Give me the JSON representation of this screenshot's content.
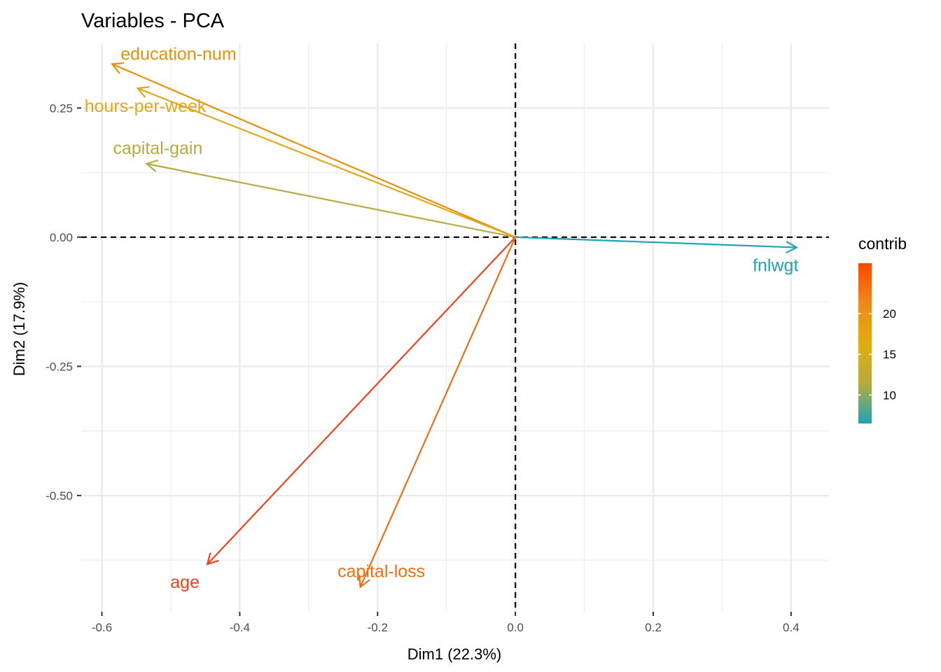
{
  "chart_data": {
    "type": "scatter",
    "subtype": "pca-variable-correlation-arrows",
    "title": "Variables - PCA",
    "xlabel": "Dim1 (22.3%)",
    "ylabel": "Dim2 (17.9%)",
    "xlim": [
      -0.63,
      0.455
    ],
    "ylim": [
      -0.725,
      0.375
    ],
    "x_ticks": [
      -0.6,
      -0.4,
      -0.2,
      0.0,
      0.2,
      0.4
    ],
    "x_tick_labels": [
      "-0.6",
      "-0.4",
      "-0.2",
      "0.0",
      "0.2",
      "0.4"
    ],
    "y_ticks": [
      0.25,
      0.0,
      -0.25,
      -0.5
    ],
    "y_tick_labels": [
      "0.25",
      "0.00",
      "-0.25",
      "-0.50"
    ],
    "grid": true,
    "reference_lines": {
      "x": 0,
      "y": 0,
      "style": "dashed"
    },
    "variables": [
      {
        "name": "education-num",
        "x": -0.585,
        "y": 0.335,
        "contrib": 19.5,
        "color": "#E8900A"
      },
      {
        "name": "hours-per-week",
        "x": -0.548,
        "y": 0.288,
        "contrib": 17.5,
        "color": "#E0A81A"
      },
      {
        "name": "capital-gain",
        "x": -0.535,
        "y": 0.142,
        "contrib": 13.0,
        "color": "#B5AB40"
      },
      {
        "name": "fnlwgt",
        "x": 0.408,
        "y": -0.02,
        "contrib": 7.0,
        "color": "#1FA3B4"
      },
      {
        "name": "age",
        "x": -0.447,
        "y": -0.633,
        "contrib": 25.5,
        "color": "#F0421C"
      },
      {
        "name": "capital-loss",
        "x": -0.225,
        "y": -0.677,
        "contrib": 22.0,
        "color": "#EE6E14"
      }
    ],
    "legend": {
      "title": "contrib",
      "placement": "right",
      "ticks": [
        20,
        15,
        10
      ],
      "tick_labels": [
        "20",
        "15",
        "10"
      ],
      "range": [
        6.5,
        26.2
      ],
      "gradient": [
        "#1FA3B4",
        "#B5AB40",
        "#E2AC10",
        "#EE8A1A",
        "#FF4500"
      ]
    }
  }
}
